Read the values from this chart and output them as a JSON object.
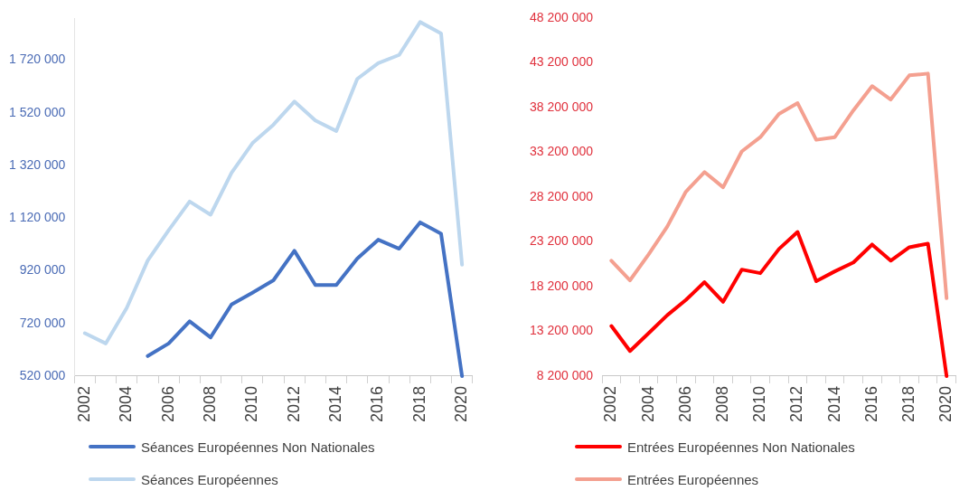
{
  "chart_data": [
    {
      "type": "line",
      "categories": [
        "2002",
        null,
        "2004",
        null,
        "2006",
        null,
        "2008",
        null,
        "2010",
        null,
        "2012",
        null,
        "2014",
        null,
        "2016",
        null,
        "2018",
        null,
        "2020"
      ],
      "series": [
        {
          "name": "Séances Européennes Non Nationales",
          "color": "#4472c4",
          "values": [
            null,
            null,
            null,
            596000,
            644000,
            728000,
            667000,
            792000,
            837000,
            884000,
            996000,
            866000,
            866000,
            966000,
            1038000,
            1004000,
            1104000,
            1061000,
            520000
          ]
        },
        {
          "name": "Séances Européennes",
          "color": "#bdd7ee",
          "values": [
            683000,
            644000,
            779000,
            959000,
            1074000,
            1183000,
            1133000,
            1292000,
            1405000,
            1475000,
            1563000,
            1491000,
            1451000,
            1649000,
            1709000,
            1740000,
            1865000,
            1822000,
            943000
          ]
        }
      ],
      "ylim": [
        520000,
        1880000
      ],
      "yticks": [
        {
          "value": 520000,
          "label": "520 000"
        },
        {
          "value": 720000,
          "label": "720 000"
        },
        {
          "value": 920000,
          "label": "920 000"
        },
        {
          "value": 1120000,
          "label": "1 120 000"
        },
        {
          "value": 1320000,
          "label": "1 320 000"
        },
        {
          "value": 1520000,
          "label": "1 520 000"
        },
        {
          "value": 1720000,
          "label": "1 720 000"
        }
      ],
      "grid": false,
      "legend": "bottom",
      "marker": "none",
      "line_style": "solid"
    },
    {
      "type": "line",
      "categories": [
        "2002",
        null,
        "2004",
        null,
        "2006",
        null,
        "2008",
        null,
        "2010",
        null,
        "2012",
        null,
        "2014",
        null,
        "2016",
        null,
        "2018",
        null,
        "2020"
      ],
      "series": [
        {
          "name": "Entrées Européennes Non Nationales",
          "color": "#ff0000",
          "values": [
            13800000,
            11000000,
            13000000,
            15000000,
            16700000,
            18700000,
            16500000,
            20100000,
            19700000,
            22400000,
            24300000,
            18800000,
            19900000,
            20900000,
            22900000,
            21100000,
            22600000,
            23000000,
            8200000
          ]
        },
        {
          "name": "Entrées Européennes",
          "color": "#f4a090",
          "values": [
            21100000,
            18900000,
            21800000,
            24900000,
            28800000,
            31000000,
            29300000,
            33300000,
            34900000,
            37500000,
            38700000,
            34600000,
            34900000,
            37900000,
            40600000,
            39100000,
            41800000,
            42000000,
            16900000
          ]
        }
      ],
      "ylim": [
        8200000,
        48200000
      ],
      "yticks": [
        {
          "value": 8200000,
          "label": "8 200 000"
        },
        {
          "value": 13200000,
          "label": "13 200 000"
        },
        {
          "value": 18200000,
          "label": "18 200 000"
        },
        {
          "value": 23200000,
          "label": "23 200 000"
        },
        {
          "value": 28200000,
          "label": "28 200 000"
        },
        {
          "value": 33200000,
          "label": "33 200 000"
        },
        {
          "value": 38200000,
          "label": "38 200 000"
        },
        {
          "value": 43200000,
          "label": "43 200 000"
        },
        {
          "value": 48200000,
          "label": "48 200 000"
        }
      ],
      "grid": false,
      "legend": "bottom",
      "marker": "none",
      "line_style": "solid"
    }
  ]
}
